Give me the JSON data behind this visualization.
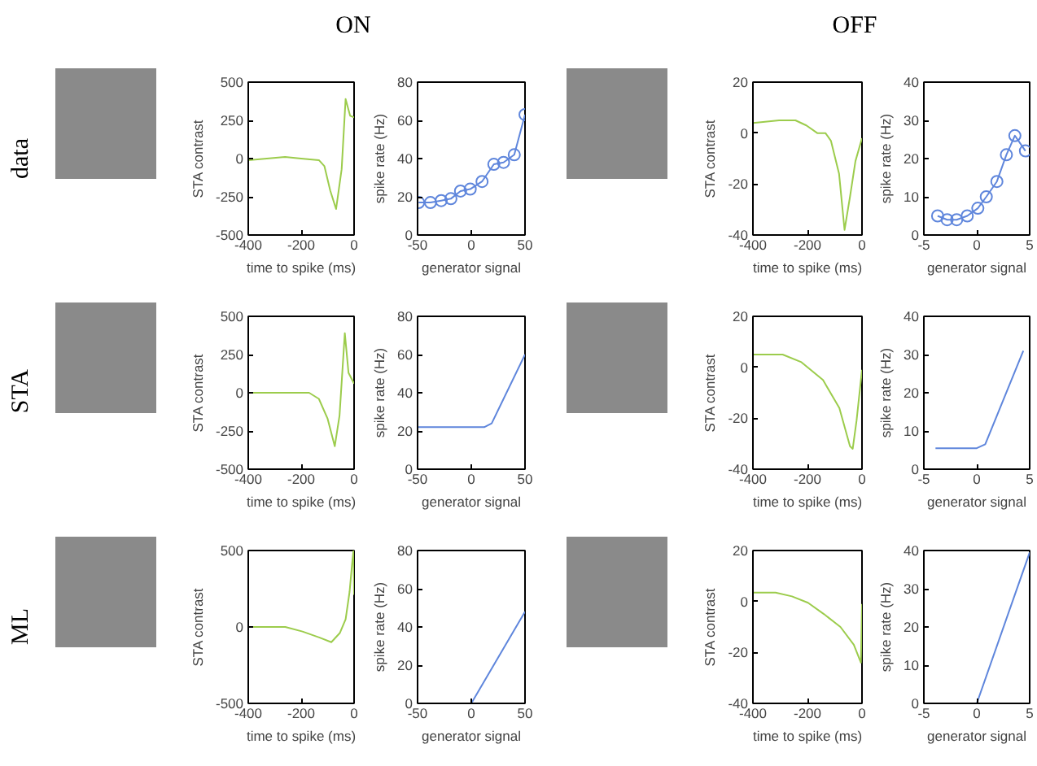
{
  "chart_data": [
    {
      "type": "other",
      "annotations": [
        "ON",
        "OFF",
        "data",
        "STA",
        "ML"
      ]
    },
    {
      "type": "line",
      "x": [
        -400,
        -330,
        -261,
        -200,
        -133,
        -112,
        -90,
        -68,
        -47,
        -32,
        -15,
        0
      ],
      "values": [
        -10,
        0,
        10,
        0,
        -10,
        -50,
        -210,
        -330,
        -70,
        390,
        280,
        270
      ],
      "color": "#9ccc4c",
      "xlabel": "time to spike (ms)",
      "ylabel": "STA contrast",
      "xlim": [
        -400,
        0
      ],
      "ylim": [
        -500,
        500
      ],
      "xticks": [
        -400,
        -200,
        0
      ],
      "yticks": [
        -500,
        -250,
        0,
        250,
        500
      ]
    },
    {
      "type": "line",
      "x": [
        -49,
        -38,
        -28,
        -19,
        -10,
        -1,
        10,
        21,
        30,
        40,
        50
      ],
      "values": [
        17,
        17,
        18,
        19,
        23,
        24,
        28,
        37,
        38,
        42,
        63
      ],
      "color": "#5f86dc",
      "marker": "circle",
      "xlabel": "generator signal",
      "ylabel": "spike rate (Hz)",
      "xlim": [
        -50,
        50
      ],
      "ylim": [
        0,
        80
      ],
      "xticks": [
        -50,
        0,
        50
      ],
      "yticks": [
        0,
        20,
        40,
        60,
        80
      ]
    },
    {
      "type": "line",
      "x": [
        -400,
        -304,
        -244,
        -204,
        -164,
        -134,
        -114,
        -84,
        -64,
        -44,
        -24,
        0
      ],
      "values": [
        4,
        5,
        5,
        3,
        0,
        0,
        -3,
        -16,
        -38,
        -25,
        -11,
        -2
      ],
      "color": "#9ccc4c",
      "xlabel": "time to spike (ms)",
      "ylabel": "STA contrast",
      "xlim": [
        -400,
        0
      ],
      "ylim": [
        -40,
        20
      ],
      "xticks": [
        -400,
        -200,
        0
      ],
      "yticks": [
        -40,
        -20,
        0,
        20
      ]
    },
    {
      "type": "line",
      "x": [
        -3.7,
        -2.8,
        -1.9,
        -0.9,
        0.1,
        0.9,
        1.9,
        2.8,
        3.6,
        4.6
      ],
      "values": [
        5,
        4,
        4,
        5,
        7,
        10,
        14,
        21,
        26,
        22
      ],
      "color": "#5f86dc",
      "marker": "circle",
      "xlabel": "generator signal",
      "ylabel": "spike rate (Hz)",
      "xlim": [
        -5,
        5
      ],
      "ylim": [
        0,
        40
      ],
      "xticks": [
        -5,
        0,
        5
      ],
      "yticks": [
        0,
        10,
        20,
        30,
        40
      ]
    },
    {
      "type": "line",
      "x": [
        -400,
        -300,
        -200,
        -170,
        -133,
        -100,
        -73,
        -55,
        -35,
        -21,
        0
      ],
      "values": [
        0,
        0,
        0,
        0,
        -40,
        -170,
        -350,
        -150,
        390,
        130,
        60
      ],
      "color": "#9ccc4c",
      "xlabel": "time to spike (ms)",
      "ylabel": "STA contrast",
      "xlim": [
        -400,
        0
      ],
      "ylim": [
        -500,
        500
      ],
      "xticks": [
        -400,
        -200,
        0
      ],
      "yticks": [
        -500,
        -250,
        0,
        250,
        500
      ]
    },
    {
      "type": "line",
      "x": [
        -50,
        12,
        19,
        50
      ],
      "values": [
        22,
        22,
        24,
        60
      ],
      "color": "#5f86dc",
      "xlabel": "generator signal",
      "ylabel": "spike rate (Hz)",
      "xlim": [
        -50,
        50
      ],
      "ylim": [
        0,
        80
      ],
      "xticks": [
        -50,
        0,
        50
      ],
      "yticks": [
        0,
        20,
        40,
        60,
        80
      ]
    },
    {
      "type": "line",
      "x": [
        -400,
        -341,
        -291,
        -222,
        -143,
        -83,
        -44,
        -34,
        -20,
        0
      ],
      "values": [
        5,
        5,
        5,
        2,
        -5,
        -16,
        -31,
        -32,
        -21,
        -1
      ],
      "color": "#9ccc4c",
      "xlabel": "time to spike (ms)",
      "ylabel": "STA contrast",
      "xlim": [
        -400,
        0
      ],
      "ylim": [
        -40,
        20
      ],
      "xticks": [
        -400,
        -200,
        0
      ],
      "yticks": [
        -40,
        -20,
        0,
        20
      ]
    },
    {
      "type": "line",
      "x": [
        -3.9,
        0,
        0.8,
        4.4
      ],
      "values": [
        5.5,
        5.5,
        6.5,
        31
      ],
      "color": "#5f86dc",
      "xlabel": "generator signal",
      "ylabel": "spike rate (Hz)",
      "xlim": [
        -5,
        5
      ],
      "ylim": [
        0,
        40
      ],
      "xticks": [
        -5,
        0,
        5
      ],
      "yticks": [
        0,
        10,
        20,
        30,
        40
      ]
    },
    {
      "type": "line",
      "x": [
        -400,
        -260,
        -195,
        -130,
        -86,
        -54,
        -32,
        -17,
        -6,
        -2,
        0
      ],
      "values": [
        0,
        0,
        -30,
        -70,
        -100,
        -40,
        50,
        230,
        440,
        500,
        210
      ],
      "color": "#9ccc4c",
      "xlabel": "time to spike (ms)",
      "ylabel": "STA contrast",
      "xlim": [
        -400,
        0
      ],
      "ylim": [
        -500,
        500
      ],
      "xticks": [
        -400,
        -200,
        0
      ],
      "yticks": [
        -500,
        0,
        500
      ]
    },
    {
      "type": "line",
      "x": [
        -50,
        0,
        50
      ],
      "values": [
        0,
        0,
        48
      ],
      "color": "#5f86dc",
      "xlabel": "generator signal",
      "ylabel": "spike rate (Hz)",
      "xlim": [
        -50,
        50
      ],
      "ylim": [
        0,
        80
      ],
      "xticks": [
        -50,
        0,
        50
      ],
      "yticks": [
        0,
        20,
        40,
        60,
        80
      ]
    },
    {
      "type": "line",
      "x": [
        -400,
        -317,
        -257,
        -198,
        -139,
        -79,
        -30,
        -4,
        0
      ],
      "values": [
        3.5,
        3.5,
        2,
        -0.5,
        -5,
        -10,
        -17,
        -24,
        -1
      ],
      "color": "#9ccc4c",
      "xlabel": "time to spike (ms)",
      "ylabel": "STA contrast",
      "xlim": [
        -400,
        0
      ],
      "ylim": [
        -40,
        20
      ],
      "xticks": [
        -400,
        -200,
        0
      ],
      "yticks": [
        -40,
        -20,
        0,
        20
      ]
    },
    {
      "type": "line",
      "x": [
        -5,
        0,
        5
      ],
      "values": [
        0,
        0,
        39.5
      ],
      "color": "#5f86dc",
      "xlabel": "generator signal",
      "ylabel": "spike rate (Hz)",
      "xlim": [
        -5,
        5
      ],
      "ylim": [
        0,
        40
      ],
      "xticks": [
        -5,
        0,
        5
      ],
      "yticks": [
        0,
        10,
        20,
        30,
        40
      ]
    }
  ]
}
